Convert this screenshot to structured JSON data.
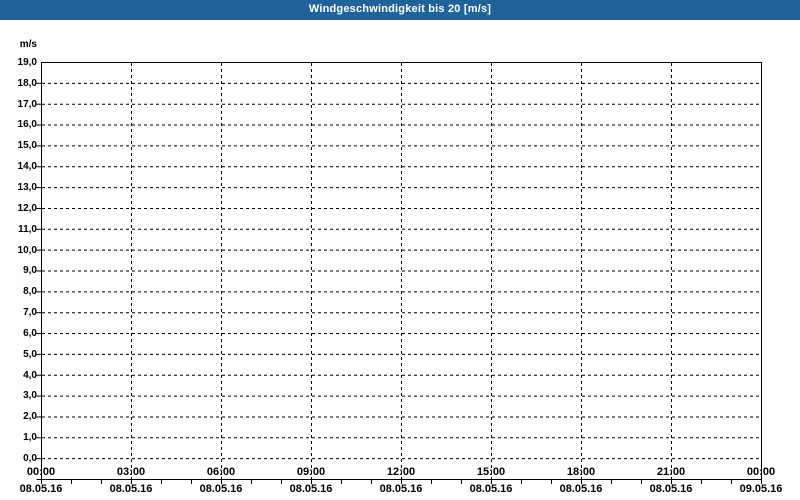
{
  "window": {
    "title": "Windgeschwindigkeit bis 20 [m/s]"
  },
  "colors": {
    "frame_blue": "#20639a",
    "frame_blue_dark": "#17517f",
    "title_text": "#ffffff",
    "page_bg": "#fdfdfb",
    "plot_bg": "#fdfffd",
    "grid": "#000000",
    "axis": "#000000",
    "label_text": "#000000"
  },
  "chart_data": {
    "type": "line",
    "title": "Windgeschwindigkeit bis 20 [m/s]",
    "xlabel": "",
    "ylabel": "m/s",
    "ylim": [
      0,
      20
    ],
    "y_tick_step": 1.0,
    "y_tick_labels": [
      "0,0",
      "1,0",
      "2,0",
      "3,0",
      "4,0",
      "5,0",
      "6,0",
      "7,0",
      "8,0",
      "9,0",
      "10,0",
      "11,0",
      "12,0",
      "13,0",
      "14,0",
      "15,0",
      "16,0",
      "17,0",
      "18,0",
      "19,0"
    ],
    "x_range_hours": 24,
    "x_major_tick_interval_hours": 3,
    "x_minor_tick_interval_hours": 1,
    "x_ticks": [
      {
        "time": "00:00",
        "date": "08.05.16"
      },
      {
        "time": "03:00",
        "date": "08.05.16"
      },
      {
        "time": "06:00",
        "date": "08.05.16"
      },
      {
        "time": "09:00",
        "date": "08.05.16"
      },
      {
        "time": "12:00",
        "date": "08.05.16"
      },
      {
        "time": "15:00",
        "date": "08.05.16"
      },
      {
        "time": "18:00",
        "date": "08.05.16"
      },
      {
        "time": "21:00",
        "date": "08.05.16"
      },
      {
        "time": "00:00",
        "date": "09.05.16"
      }
    ],
    "grid": {
      "visible": true,
      "style": "dashed"
    },
    "series": []
  }
}
